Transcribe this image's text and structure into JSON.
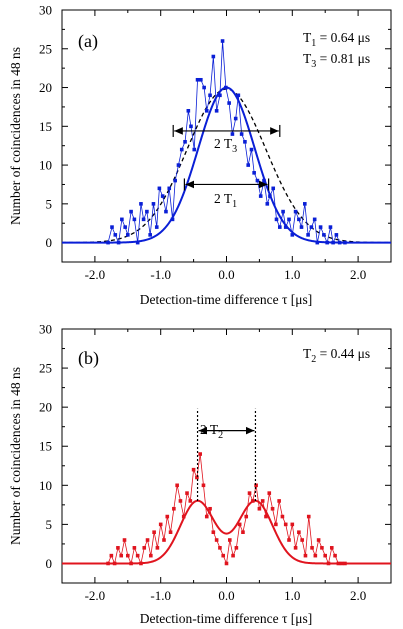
{
  "chart_data": [
    {
      "type": "scatter",
      "panel_label": "(a)",
      "xlabel": "Detection-time difference τ  [μs]",
      "ylabel": "Number of coincidences in 48 ns",
      "xlim": [
        -2.5,
        2.5
      ],
      "ylim": [
        -2.5,
        30
      ],
      "xticks": [
        -2.0,
        -1.0,
        0.0,
        1.0,
        2.0
      ],
      "xtick_labels": [
        "-2.0",
        "-1.0",
        "0.0",
        "1.0",
        "2.0"
      ],
      "yticks": [
        0,
        5,
        10,
        15,
        20,
        25,
        30
      ],
      "ytick_labels": [
        "0",
        "5",
        "10",
        "15",
        "20",
        "25",
        "30"
      ],
      "color": "#0a1fd6",
      "annotations": {
        "t1": {
          "base": "T",
          "sub": "1",
          "rest": " = 0.64 μs"
        },
        "t3": {
          "base": "T",
          "sub": "3",
          "rest": " = 0.81 μs"
        },
        "arrow_t3": {
          "base": "2 T",
          "sub": "3"
        },
        "arrow_t1": {
          "base": "2 T",
          "sub": "1"
        }
      },
      "arrows": [
        {
          "from": -0.81,
          "to": 0.81,
          "y": 14.4
        },
        {
          "from": -0.64,
          "to": 0.64,
          "y": 7.5
        }
      ],
      "fit_solid": {
        "amplitude": 20.0,
        "center": 0.0,
        "sigma": 0.43,
        "color": "#0a1fd6"
      },
      "fit_dashed": {
        "amplitude": 19.8,
        "center": 0.0,
        "sigma": 0.6,
        "color": "#000000"
      },
      "series": [
        {
          "x": [
            -2.5,
            -1.8,
            -1.74,
            -1.69,
            -1.64,
            -1.59,
            -1.54,
            -1.5,
            -1.45,
            -1.4,
            -1.35,
            -1.3,
            -1.26,
            -1.21,
            -1.16,
            -1.11,
            -1.06,
            -1.02,
            -0.97,
            -0.92,
            -0.87,
            -0.82,
            -0.78,
            -0.73,
            -0.68,
            -0.63,
            -0.58,
            -0.54,
            -0.49,
            -0.44,
            -0.39,
            -0.34,
            -0.3,
            -0.25,
            -0.2,
            -0.15,
            -0.1,
            -0.06,
            -0.01,
            0.04,
            0.09,
            0.14,
            0.18,
            0.23,
            0.28,
            0.33,
            0.38,
            0.42,
            0.47,
            0.52,
            0.57,
            0.62,
            0.66,
            0.71,
            0.76,
            0.81,
            0.86,
            0.9,
            0.95,
            1.0,
            1.05,
            1.1,
            1.14,
            1.19,
            1.24,
            1.29,
            1.34,
            1.38,
            1.43,
            1.48,
            1.53,
            1.58,
            1.62,
            1.67,
            1.72,
            1.8,
            2.5
          ],
          "y": [
            0,
            0,
            2,
            1,
            0,
            3,
            2,
            1,
            4,
            3,
            0,
            5,
            3,
            4,
            1,
            5,
            2,
            7,
            6,
            4,
            7,
            3,
            8,
            10,
            12,
            13,
            17,
            15,
            12,
            21,
            21,
            20,
            17,
            19,
            24,
            17,
            19,
            26,
            20,
            18,
            14,
            16,
            19,
            14,
            13,
            10,
            12,
            9,
            8,
            6,
            8,
            5,
            6,
            7,
            3,
            2,
            4,
            2,
            3,
            1,
            4,
            3,
            2,
            5,
            1,
            2,
            3,
            0,
            2,
            1,
            0,
            2,
            0,
            1,
            0,
            0,
            0
          ]
        }
      ]
    },
    {
      "type": "scatter",
      "panel_label": "(b)",
      "xlabel": "Detection-time difference τ  [μs]",
      "ylabel": "Number of coincidences in 48 ns",
      "xlim": [
        -2.5,
        2.5
      ],
      "ylim": [
        -2.5,
        30
      ],
      "xticks": [
        -2.0,
        -1.0,
        0.0,
        1.0,
        2.0
      ],
      "xtick_labels": [
        "-2.0",
        "-1.0",
        "0.0",
        "1.0",
        "2.0"
      ],
      "yticks": [
        0,
        5,
        10,
        15,
        20,
        25,
        30
      ],
      "ytick_labels": [
        "0",
        "5",
        "10",
        "15",
        "20",
        "25",
        "30"
      ],
      "color": "#e0141e",
      "annotations": {
        "t2": {
          "base": "T",
          "sub": "2",
          "rest": " = 0.44 μs"
        },
        "arrow_t2": {
          "base": "2 T",
          "sub": "2"
        }
      },
      "arrows": [
        {
          "from": -0.44,
          "to": 0.44,
          "y": 17.0
        }
      ],
      "dotted_lines": [
        {
          "x": -0.44,
          "y_from": 8.0,
          "y_to": 19.8
        },
        {
          "x": 0.44,
          "y_from": 8.0,
          "y_to": 19.8
        }
      ],
      "fit_solid": {
        "amplitude": 8.0,
        "centers": [
          -0.44,
          0.44
        ],
        "sigma": 0.26,
        "dip_floor": 1.5,
        "color": "#e0141e"
      },
      "series": [
        {
          "x": [
            -2.5,
            -1.8,
            -1.75,
            -1.7,
            -1.65,
            -1.6,
            -1.55,
            -1.5,
            -1.45,
            -1.4,
            -1.35,
            -1.3,
            -1.25,
            -1.2,
            -1.15,
            -1.1,
            -1.05,
            -1.0,
            -0.95,
            -0.9,
            -0.85,
            -0.8,
            -0.75,
            -0.7,
            -0.65,
            -0.6,
            -0.55,
            -0.5,
            -0.45,
            -0.4,
            -0.35,
            -0.3,
            -0.25,
            -0.2,
            -0.15,
            -0.1,
            -0.05,
            0.0,
            0.05,
            0.1,
            0.15,
            0.2,
            0.25,
            0.3,
            0.35,
            0.4,
            0.45,
            0.5,
            0.55,
            0.6,
            0.65,
            0.7,
            0.75,
            0.8,
            0.85,
            0.9,
            0.95,
            1.0,
            1.05,
            1.1,
            1.15,
            1.2,
            1.25,
            1.3,
            1.35,
            1.4,
            1.45,
            1.5,
            1.55,
            1.6,
            1.65,
            1.7,
            1.75,
            1.8,
            2.5
          ],
          "y": [
            0,
            0,
            1,
            0,
            2,
            1,
            3,
            1,
            0,
            2,
            1,
            0,
            2,
            3,
            1,
            4,
            2,
            5,
            3,
            6,
            4,
            7,
            10,
            8,
            6,
            9,
            8,
            12,
            11,
            14,
            10,
            6,
            7,
            4,
            3,
            2,
            1,
            0,
            3,
            1,
            2,
            5,
            4,
            6,
            9,
            8,
            10,
            7,
            8,
            6,
            9,
            7,
            5,
            8,
            6,
            5,
            3,
            5,
            2,
            4,
            3,
            1,
            6,
            2,
            1,
            3,
            2,
            1,
            0,
            2,
            1,
            0,
            0,
            0,
            0
          ]
        }
      ]
    }
  ]
}
